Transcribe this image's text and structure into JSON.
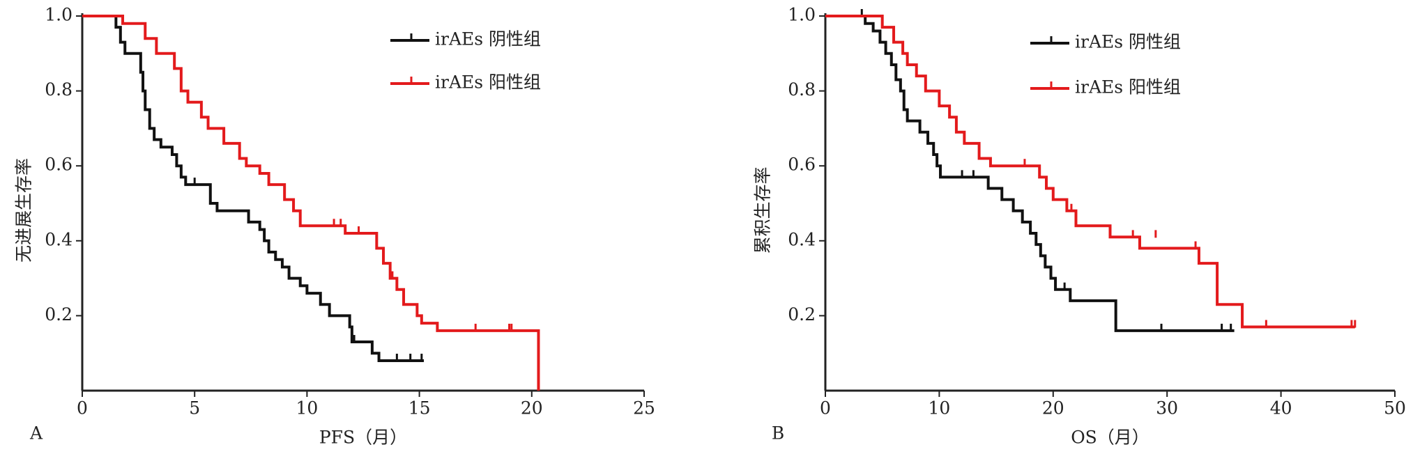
{
  "chart_data": [
    {
      "type": "step",
      "panel": "A",
      "x_label": "PFS（月）",
      "y_label": "无进展生存率",
      "xlim": [
        0,
        25
      ],
      "ylim": [
        0,
        1
      ],
      "xticks": [
        0,
        5,
        10,
        15,
        20,
        25
      ],
      "yticks": [
        0.2,
        0.4,
        0.6,
        0.8,
        {
          "value": 1,
          "label": "1.0"
        }
      ],
      "series": [
        {
          "name": "irAEs 阴性组",
          "color": "#111111",
          "x": [
            0,
            1.5,
            1.7,
            1.9,
            2.6,
            2.7,
            2.8,
            3.0,
            3.2,
            3.5,
            4.0,
            4.2,
            4.4,
            4.6,
            5.7,
            6.0,
            7.4,
            7.9,
            8.1,
            8.3,
            8.6,
            8.9,
            9.2,
            9.7,
            10.0,
            10.6,
            11.0,
            11.9,
            12.0,
            12.9,
            13.2,
            15.2
          ],
          "values": [
            1,
            0.97,
            0.93,
            0.9,
            0.85,
            0.8,
            0.75,
            0.7,
            0.67,
            0.65,
            0.63,
            0.6,
            0.57,
            0.55,
            0.5,
            0.48,
            0.45,
            0.43,
            0.4,
            0.37,
            0.35,
            0.33,
            0.3,
            0.28,
            0.26,
            0.23,
            0.2,
            0.17,
            0.13,
            0.1,
            0.08,
            0.08
          ],
          "censored_x": [
            5,
            12.1,
            14,
            14.6,
            15.1
          ],
          "censored_y": [
            0.55,
            0.13,
            0.08,
            0.08,
            0.08
          ]
        },
        {
          "name": "irAEs 阳性组",
          "color": "#e31a1c",
          "x": [
            0,
            1.8,
            2.8,
            3.3,
            4.1,
            4.4,
            4.7,
            5.3,
            5.6,
            6.3,
            7.0,
            7.3,
            7.9,
            8.3,
            9.0,
            9.4,
            9.7,
            11.7,
            13.1,
            13.4,
            13.7,
            14.0,
            14.3,
            14.9,
            15.1,
            15.8,
            20.3,
            20.3
          ],
          "values": [
            1,
            0.98,
            0.94,
            0.9,
            0.86,
            0.8,
            0.77,
            0.73,
            0.7,
            0.66,
            0.62,
            0.6,
            0.58,
            0.55,
            0.51,
            0.48,
            0.44,
            0.42,
            0.38,
            0.34,
            0.3,
            0.27,
            0.23,
            0.2,
            0.18,
            0.16,
            0.16,
            0
          ],
          "censored_x": [
            11.2,
            11.5,
            12.3,
            13.8,
            17.5,
            19,
            19.1
          ],
          "censored_y": [
            0.44,
            0.44,
            0.42,
            0.3,
            0.16,
            0.16,
            0.16
          ]
        }
      ]
    },
    {
      "type": "step",
      "panel": "B",
      "x_label": "OS（月）",
      "y_label": "累积生存率",
      "xlim": [
        0,
        50
      ],
      "ylim": [
        0,
        1
      ],
      "xticks": [
        0,
        10,
        20,
        30,
        40,
        50
      ],
      "yticks": [
        0.2,
        0.4,
        0.6,
        0.8,
        {
          "value": 1,
          "label": "1.0"
        }
      ],
      "series": [
        {
          "name": "irAEs 阴性组",
          "color": "#111111",
          "x": [
            0,
            3.5,
            4.2,
            4.8,
            5.3,
            5.8,
            6.2,
            6.6,
            6.9,
            7.2,
            8.3,
            9.0,
            9.5,
            9.8,
            10.1,
            14.3,
            15.5,
            16.5,
            17.3,
            18.0,
            18.5,
            18.9,
            19.3,
            19.8,
            20.2,
            21.5,
            25.5,
            35.9
          ],
          "values": [
            1,
            0.98,
            0.96,
            0.93,
            0.9,
            0.87,
            0.83,
            0.8,
            0.75,
            0.72,
            0.69,
            0.66,
            0.63,
            0.6,
            0.57,
            0.54,
            0.51,
            0.48,
            0.45,
            0.42,
            0.39,
            0.36,
            0.33,
            0.3,
            0.27,
            0.24,
            0.16,
            0.16
          ],
          "censored_x": [
            3.2,
            12,
            13,
            21,
            29.5,
            34.8,
            35.6
          ],
          "censored_y": [
            1,
            0.57,
            0.57,
            0.27,
            0.16,
            0.16,
            0.16
          ]
        },
        {
          "name": "irAEs 阳性组",
          "color": "#e31a1c",
          "x": [
            0,
            5.0,
            6.0,
            6.8,
            7.2,
            8.0,
            8.8,
            10.0,
            10.9,
            11.5,
            12.2,
            13.5,
            14.5,
            18.8,
            19.4,
            20.0,
            21.2,
            22.0,
            25.0,
            27.6,
            32.8,
            34.4,
            36.6,
            46.5
          ],
          "values": [
            1,
            0.97,
            0.93,
            0.9,
            0.87,
            0.84,
            0.8,
            0.76,
            0.73,
            0.69,
            0.66,
            0.62,
            0.6,
            0.57,
            0.54,
            0.51,
            0.48,
            0.44,
            0.41,
            0.38,
            0.34,
            0.23,
            0.17,
            0.17
          ],
          "censored_x": [
            17.5,
            21.2,
            21.6,
            27,
            29,
            32.5,
            38.7,
            46.2,
            46.5
          ],
          "censored_y": [
            0.6,
            0.48,
            0.48,
            0.41,
            0.41,
            0.38,
            0.17,
            0.17,
            0.17
          ]
        }
      ]
    }
  ]
}
